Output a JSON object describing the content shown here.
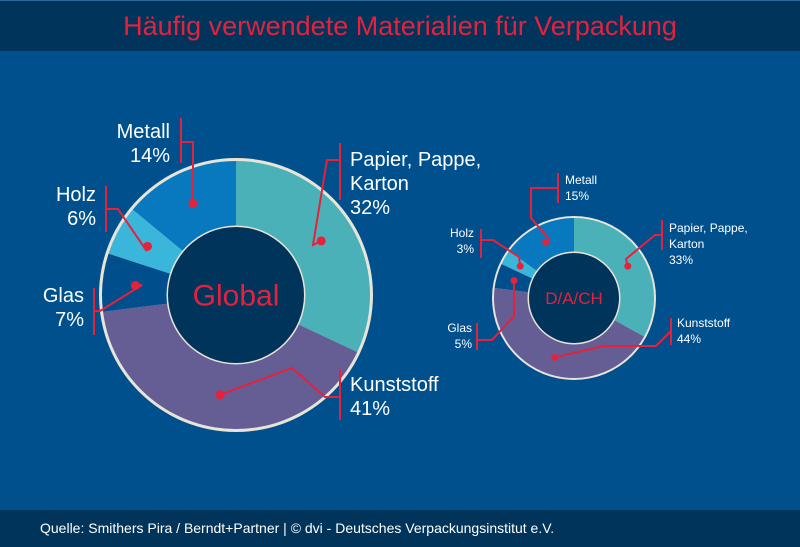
{
  "header": {
    "title": "Häufig verwendete Materialien für Verpackung"
  },
  "footer": {
    "source": "Quelle: Smithers Pira / Berndt+Partner | © dvi - Deutsches Verpackungsinstitut e.V."
  },
  "colors": {
    "background": "#00508e",
    "header": "#01345b",
    "accent": "#e5213c",
    "center": "#01345b",
    "ring_border": "#e8e4d8"
  },
  "chart_data": [
    {
      "type": "pie",
      "variant": "donut",
      "title": "Global",
      "categories": [
        "Papier, Pappe, Karton",
        "Kunststoff",
        "Glas",
        "Holz",
        "Metall"
      ],
      "values": [
        32,
        41,
        7,
        6,
        14
      ],
      "value_labels": [
        "32%",
        "41%",
        "7%",
        "6%",
        "14%"
      ],
      "colors": [
        "#4bb1b8",
        "#645e95",
        "#004f8c",
        "#3bb6db",
        "#0979bf"
      ],
      "unit": "%"
    },
    {
      "type": "pie",
      "variant": "donut",
      "title": "D/A/CH",
      "categories": [
        "Papier, Pappe, Karton",
        "Kunststoff",
        "Glas",
        "Holz",
        "Metall"
      ],
      "values": [
        33,
        44,
        5,
        3,
        15
      ],
      "value_labels": [
        "33%",
        "44%",
        "5%",
        "3%",
        "15%"
      ],
      "colors": [
        "#4bb1b8",
        "#645e95",
        "#004f8c",
        "#3bb6db",
        "#0979bf"
      ],
      "unit": "%"
    }
  ]
}
